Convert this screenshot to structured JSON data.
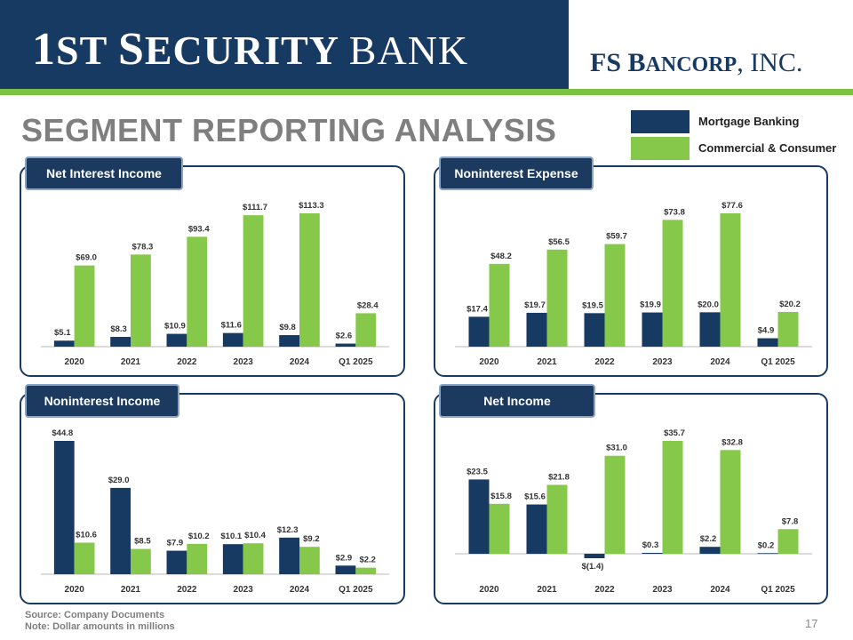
{
  "header": {
    "bank_logo": {
      "big1": "1",
      "rest1": "ST ",
      "big2": "S",
      "rest2": "ECURITY ",
      "rest3": "BANK"
    },
    "parent_logo": {
      "big1": "FS B",
      "rest1": "ANCORP",
      "rest2": ", INC."
    }
  },
  "title": "SEGMENT REPORTING ANALYSIS",
  "legend": [
    {
      "label": "Mortgage Banking",
      "color": "#173a63"
    },
    {
      "label": "Commercial & Consumer",
      "color": "#86c94a"
    }
  ],
  "colors": {
    "mortgage": "#173a63",
    "commercial": "#86c94a",
    "axis": "#c8c8c8",
    "label": "#333333"
  },
  "chart_data": [
    {
      "id": "net-interest-income",
      "type": "bar",
      "title": "Net Interest Income",
      "categories": [
        "2020",
        "2021",
        "2022",
        "2023",
        "2024",
        "Q1 2025"
      ],
      "series": [
        {
          "name": "Mortgage Banking",
          "values": [
            5.1,
            8.3,
            10.9,
            11.6,
            9.8,
            2.6
          ],
          "labels": [
            "$5.1",
            "$8.3",
            "$10.9",
            "$11.6",
            "$9.8",
            "$2.6"
          ]
        },
        {
          "name": "Commercial & Consumer",
          "values": [
            69.0,
            78.3,
            93.4,
            111.7,
            113.3,
            28.4
          ],
          "labels": [
            "$69.0",
            "$78.3",
            "$93.4",
            "$111.7",
            "$113.3",
            "$28.4"
          ]
        }
      ],
      "ylim": [
        0,
        113.3
      ],
      "unit": "$ millions"
    },
    {
      "id": "noninterest-expense",
      "type": "bar",
      "title": "Noninterest Expense",
      "categories": [
        "2020",
        "2021",
        "2022",
        "2023",
        "2024",
        "Q1 2025"
      ],
      "series": [
        {
          "name": "Mortgage Banking",
          "values": [
            17.4,
            19.7,
            19.5,
            19.9,
            20.0,
            4.9
          ],
          "labels": [
            "$17.4",
            "$19.7",
            "$19.5",
            "$19.9",
            "$20.0",
            "$4.9"
          ]
        },
        {
          "name": "Commercial & Consumer",
          "values": [
            48.2,
            56.5,
            59.7,
            73.8,
            77.6,
            20.2
          ],
          "labels": [
            "$48.2",
            "$56.5",
            "$59.7",
            "$73.8",
            "$77.6",
            "$20.2"
          ]
        }
      ],
      "ylim": [
        0,
        77.6
      ],
      "unit": "$ millions"
    },
    {
      "id": "noninterest-income",
      "type": "bar",
      "title": "Noninterest Income",
      "categories": [
        "2020",
        "2021",
        "2022",
        "2023",
        "2024",
        "Q1 2025"
      ],
      "series": [
        {
          "name": "Mortgage Banking",
          "values": [
            44.8,
            29.0,
            7.9,
            10.1,
            12.3,
            2.9
          ],
          "labels": [
            "$44.8",
            "$29.0",
            "$7.9",
            "$10.1",
            "$12.3",
            "$2.9"
          ]
        },
        {
          "name": "Commercial & Consumer",
          "values": [
            10.6,
            8.5,
            10.2,
            10.4,
            9.2,
            2.2
          ],
          "labels": [
            "$10.6",
            "$8.5",
            "$10.2",
            "$10.4",
            "$9.2",
            "$2.2"
          ]
        }
      ],
      "ylim": [
        0,
        44.8
      ],
      "unit": "$ millions"
    },
    {
      "id": "net-income",
      "type": "bar",
      "title": "Net Income",
      "categories": [
        "2020",
        "2021",
        "2022",
        "2023",
        "2024",
        "Q1 2025"
      ],
      "series": [
        {
          "name": "Mortgage Banking",
          "values": [
            23.5,
            15.6,
            -1.4,
            0.3,
            2.2,
            0.2
          ],
          "labels": [
            "$23.5",
            "$15.6",
            "$(1.4)",
            "$0.3",
            "$2.2",
            "$0.2"
          ]
        },
        {
          "name": "Commercial & Consumer",
          "values": [
            15.8,
            21.8,
            31.0,
            35.7,
            32.8,
            7.8
          ],
          "labels": [
            "$15.8",
            "$21.8",
            "$31.0",
            "$35.7",
            "$32.8",
            "$7.8"
          ]
        }
      ],
      "ylim": [
        -1.4,
        35.7
      ],
      "unit": "$ millions"
    }
  ],
  "footer": {
    "source": "Source: Company Documents",
    "note": "Note: Dollar amounts in millions"
  },
  "page_number": "17"
}
